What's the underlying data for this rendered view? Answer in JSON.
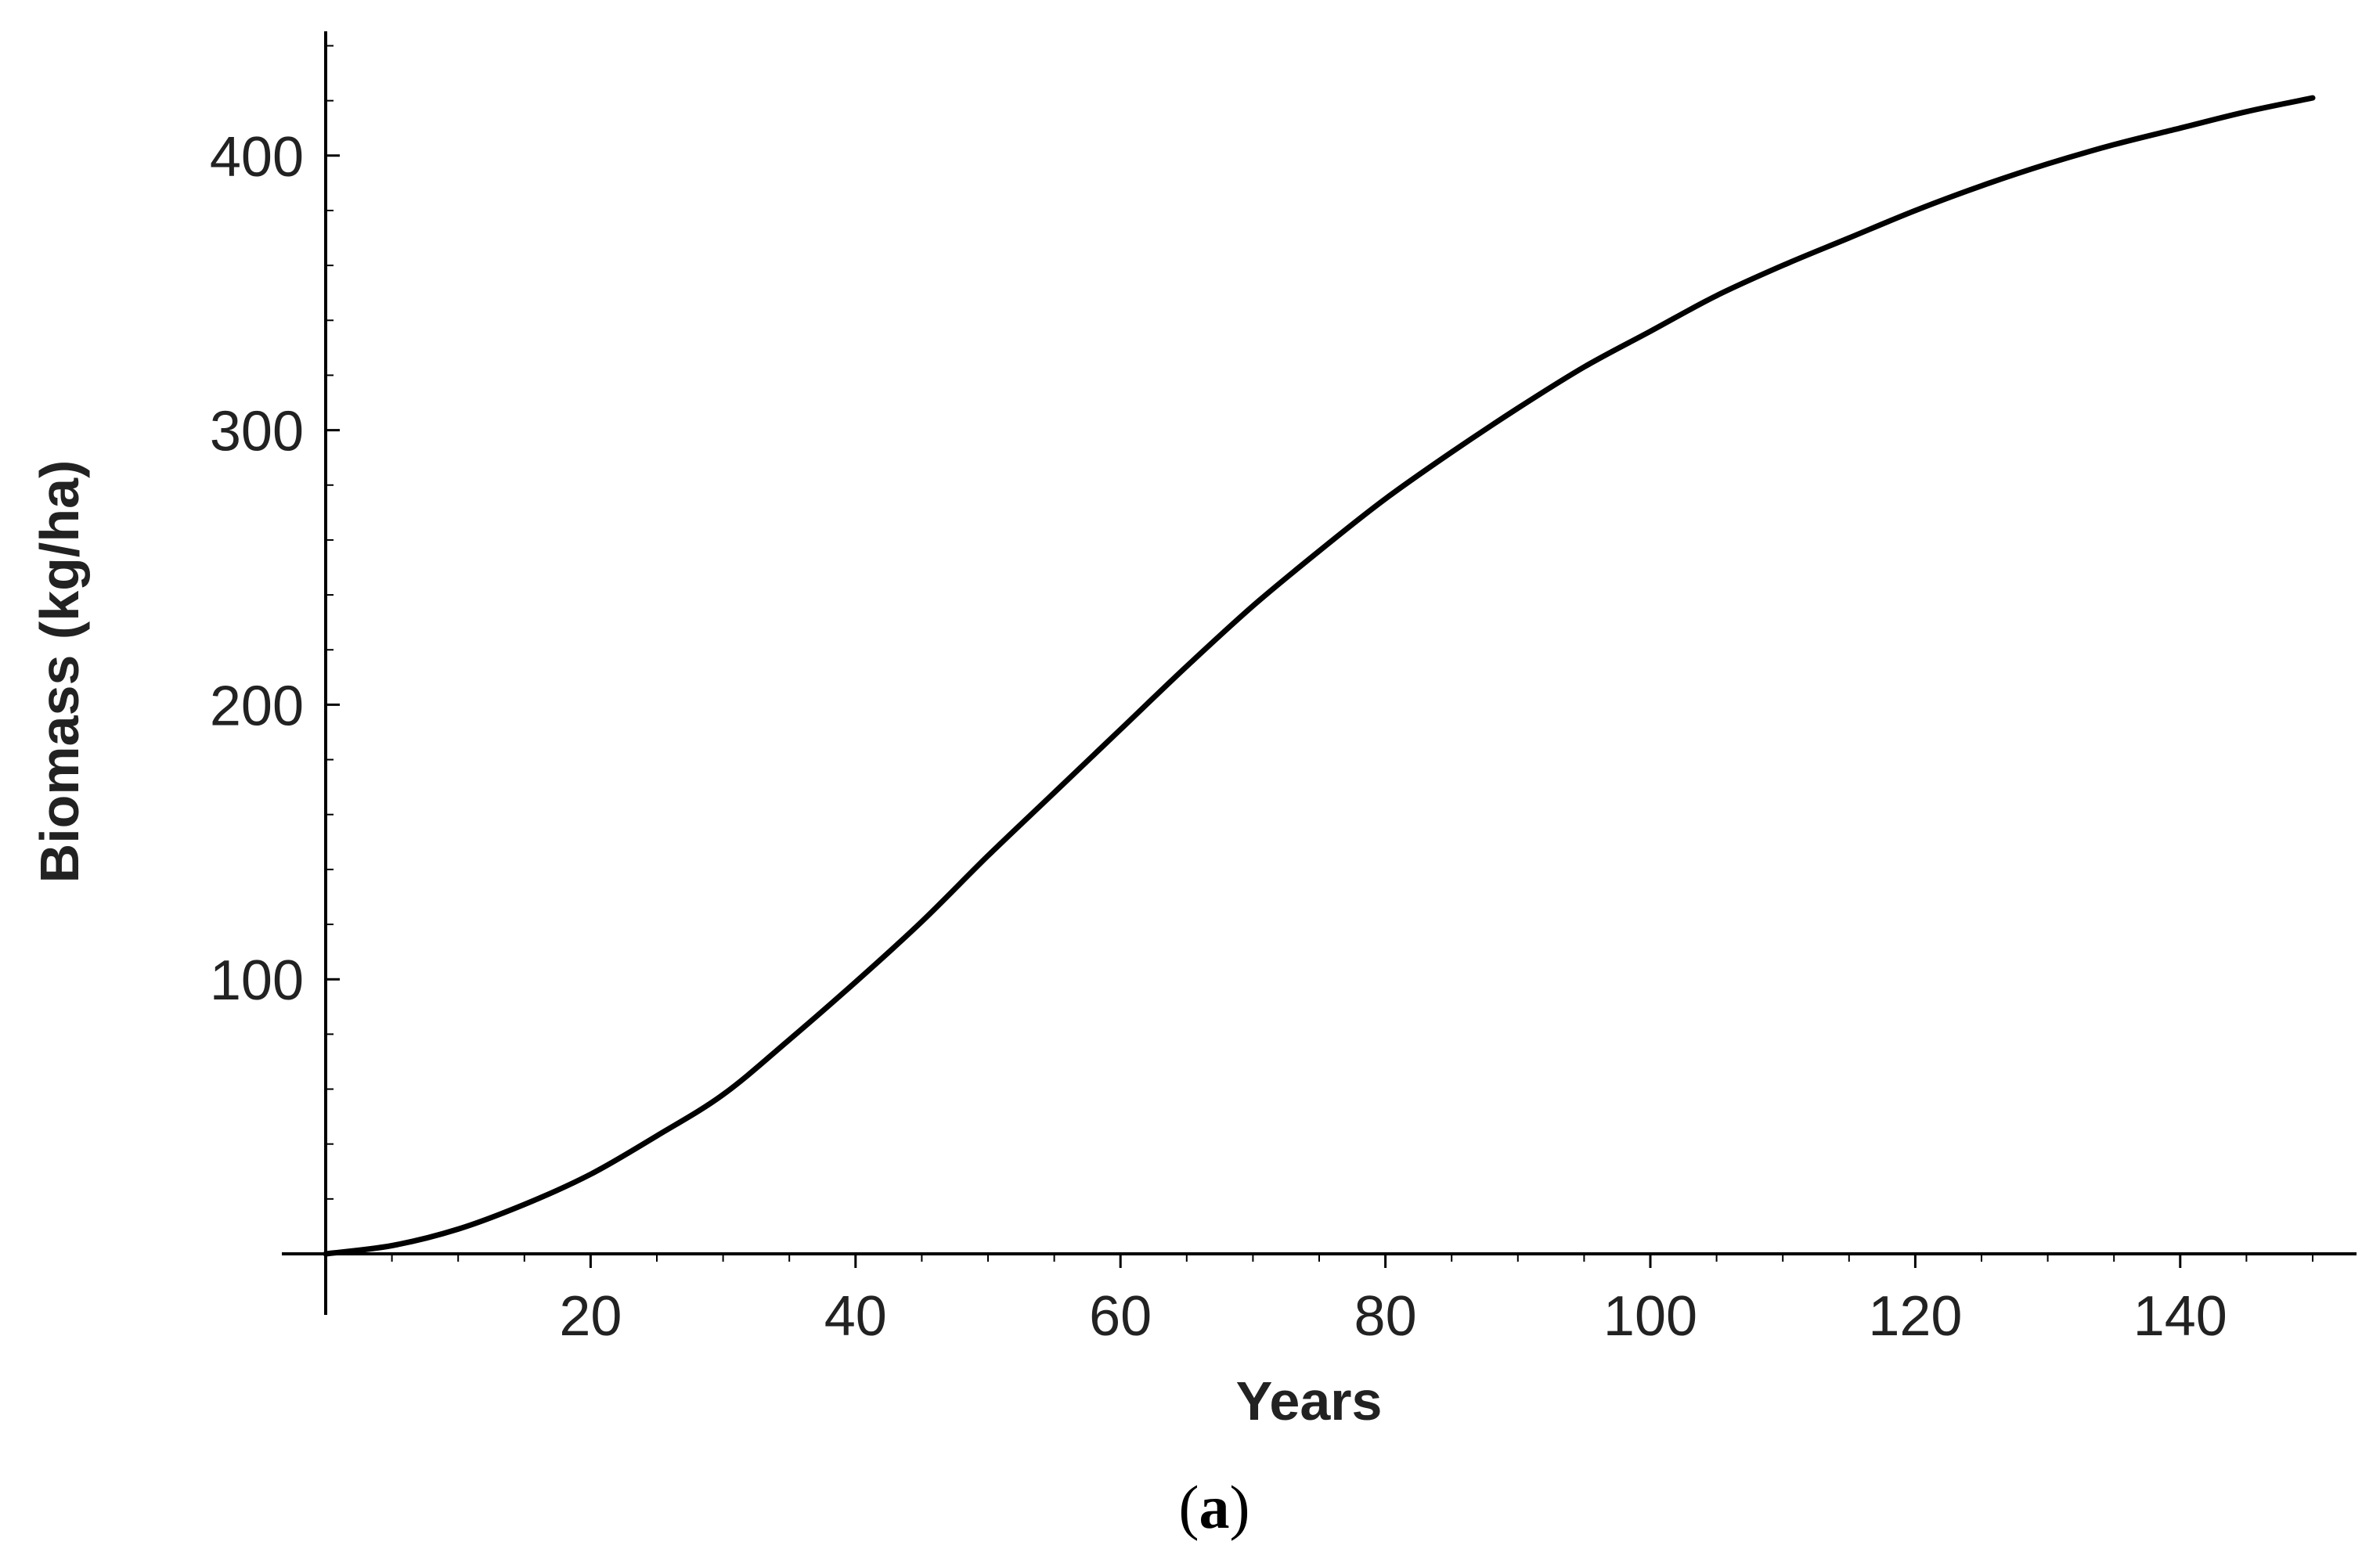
{
  "chart_data": {
    "type": "line",
    "title": "",
    "xlabel": "Years",
    "ylabel": "Biomass (kg/ha)",
    "xlim": [
      0,
      152
    ],
    "ylim": [
      0,
      440
    ],
    "x_ticks": [
      20,
      40,
      60,
      80,
      100,
      120,
      140
    ],
    "y_ticks": [
      100,
      200,
      300,
      400
    ],
    "grid": false,
    "series": [
      {
        "x": [
          0,
          5,
          10,
          15,
          20,
          25,
          30,
          35,
          40,
          45,
          50,
          55,
          60,
          65,
          70,
          75,
          80,
          85,
          90,
          95,
          100,
          105,
          110,
          115,
          120,
          125,
          130,
          135,
          140,
          145,
          150
        ],
        "y": [
          0,
          3,
          9,
          18,
          29,
          43,
          58,
          78,
          99,
          121,
          145,
          168,
          191,
          214,
          236,
          256,
          275,
          292,
          308,
          323,
          336,
          349,
          360,
          370,
          380,
          389,
          397,
          404,
          410,
          416,
          421
        ],
        "color": "#000000"
      }
    ]
  },
  "caption": {
    "open": "(",
    "label": "a",
    "close": ")"
  }
}
